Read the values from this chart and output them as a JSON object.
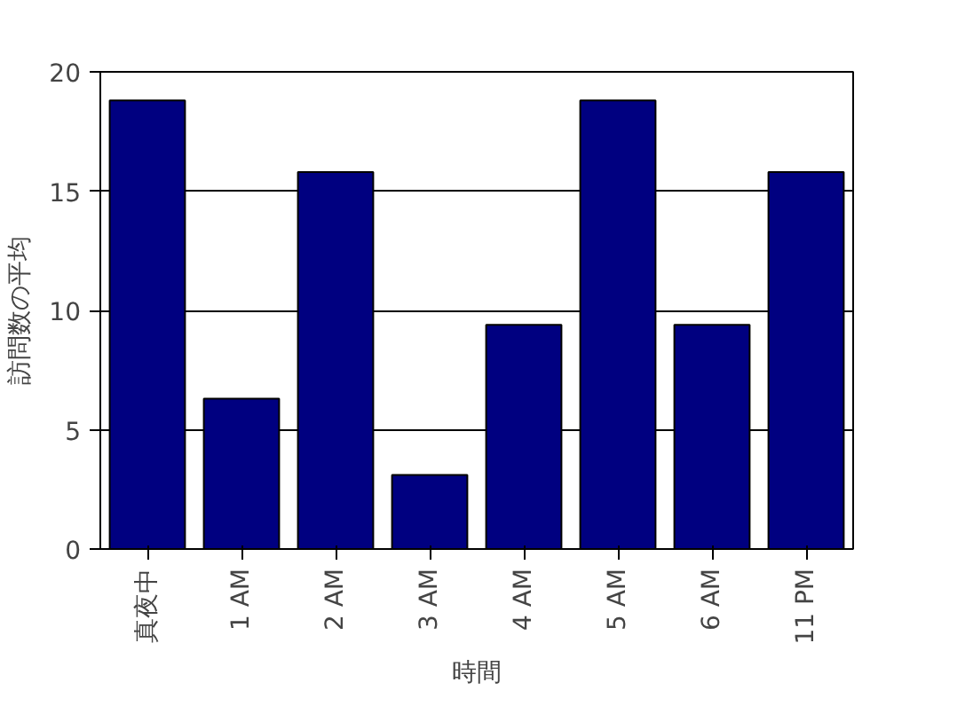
{
  "chart_data": {
    "type": "bar",
    "xlabel": "時間",
    "ylabel": "訪問数の平均",
    "categories": [
      "真夜中",
      "1 AM",
      "2 AM",
      "3 AM",
      "4 AM",
      "5 AM",
      "6 AM",
      "11 PM"
    ],
    "values": [
      18.8,
      6.3,
      15.8,
      3.1,
      9.4,
      18.8,
      9.4,
      15.8
    ],
    "color": "#000080",
    "ylim": [
      0,
      20
    ],
    "yticks": [
      0,
      5,
      10,
      15,
      20
    ],
    "grid": "y"
  }
}
